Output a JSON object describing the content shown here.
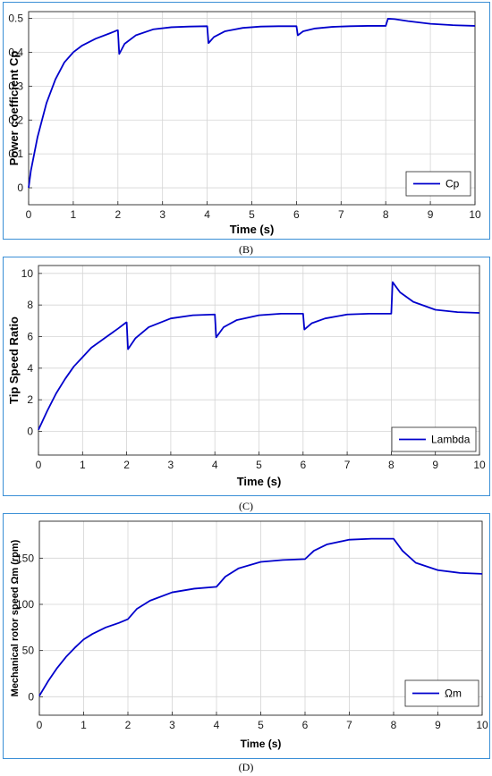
{
  "chart_data": [
    {
      "type": "line",
      "panel_label": "(B)",
      "xlabel": "Time (s)",
      "ylabel": "Power coefficient Cp",
      "xlim": [
        0,
        10
      ],
      "ylim": [
        -0.05,
        0.52
      ],
      "xticks": [
        0,
        1,
        2,
        3,
        4,
        5,
        6,
        7,
        8,
        9,
        10
      ],
      "yticks": [
        0,
        0.1,
        0.2,
        0.3,
        0.4,
        0.5
      ],
      "grid": true,
      "legend_position": "bottom-right",
      "line_color": "#0000cc",
      "series": [
        {
          "name": "Cp",
          "x": [
            0,
            0.05,
            0.2,
            0.4,
            0.6,
            0.8,
            1.0,
            1.2,
            1.5,
            1.8,
            1.99,
            2.0,
            2.03,
            2.15,
            2.4,
            2.8,
            3.2,
            3.6,
            3.99,
            4.0,
            4.03,
            4.15,
            4.4,
            4.8,
            5.2,
            5.6,
            5.99,
            6.0,
            6.03,
            6.15,
            6.4,
            6.8,
            7.2,
            7.6,
            7.99,
            8.0,
            8.05,
            8.2,
            8.5,
            9.0,
            9.5,
            10.0
          ],
          "y": [
            0.0,
            0.05,
            0.15,
            0.25,
            0.32,
            0.37,
            0.4,
            0.42,
            0.44,
            0.455,
            0.465,
            0.465,
            0.395,
            0.425,
            0.45,
            0.468,
            0.474,
            0.476,
            0.477,
            0.477,
            0.427,
            0.445,
            0.462,
            0.472,
            0.476,
            0.477,
            0.477,
            0.477,
            0.45,
            0.462,
            0.47,
            0.475,
            0.477,
            0.478,
            0.478,
            0.478,
            0.499,
            0.498,
            0.492,
            0.484,
            0.48,
            0.478
          ]
        }
      ]
    },
    {
      "type": "line",
      "panel_label": "(C)",
      "xlabel": "Time (s)",
      "ylabel": "Tip Speed Ratio",
      "xlim": [
        0,
        10
      ],
      "ylim": [
        -1.5,
        10.5
      ],
      "xticks": [
        0,
        1,
        2,
        3,
        4,
        5,
        6,
        7,
        8,
        9,
        10
      ],
      "yticks": [
        0,
        2,
        4,
        6,
        8,
        10
      ],
      "grid": true,
      "legend_position": "bottom-right",
      "line_color": "#0000cc",
      "series": [
        {
          "name": "Lambda",
          "x": [
            0,
            0.2,
            0.4,
            0.6,
            0.8,
            1.0,
            1.2,
            1.5,
            1.8,
            1.99,
            2.0,
            2.03,
            2.2,
            2.5,
            3.0,
            3.5,
            3.99,
            4.0,
            4.03,
            4.2,
            4.5,
            5.0,
            5.5,
            5.99,
            6.0,
            6.03,
            6.2,
            6.5,
            7.0,
            7.5,
            7.99,
            8.0,
            8.03,
            8.2,
            8.5,
            9.0,
            9.5,
            10.0
          ],
          "y": [
            0.1,
            1.3,
            2.4,
            3.3,
            4.1,
            4.7,
            5.3,
            5.9,
            6.5,
            6.9,
            6.9,
            5.2,
            5.9,
            6.6,
            7.15,
            7.35,
            7.4,
            7.4,
            5.95,
            6.6,
            7.05,
            7.35,
            7.45,
            7.45,
            7.45,
            6.45,
            6.85,
            7.15,
            7.4,
            7.45,
            7.45,
            7.45,
            9.45,
            8.8,
            8.2,
            7.7,
            7.55,
            7.5
          ]
        }
      ]
    },
    {
      "type": "line",
      "panel_label": "(D)",
      "xlabel": "Time (s)",
      "ylabel": "Mechanical rotor speed Ωm (rpm)",
      "xlim": [
        0,
        10
      ],
      "ylim": [
        -20,
        190
      ],
      "xticks": [
        0,
        1,
        2,
        3,
        4,
        5,
        6,
        7,
        8,
        9,
        10
      ],
      "yticks": [
        0,
        50,
        100,
        150
      ],
      "grid": true,
      "legend_position": "bottom-right",
      "line_color": "#0000cc",
      "series": [
        {
          "name": "Ωm",
          "x": [
            0,
            0.2,
            0.4,
            0.6,
            0.8,
            1.0,
            1.2,
            1.5,
            1.8,
            2.0,
            2.2,
            2.5,
            3.0,
            3.5,
            4.0,
            4.2,
            4.5,
            5.0,
            5.5,
            6.0,
            6.2,
            6.5,
            7.0,
            7.5,
            8.0,
            8.2,
            8.5,
            9.0,
            9.5,
            10.0
          ],
          "y": [
            1,
            17,
            31,
            43,
            53,
            62,
            68,
            75,
            80,
            84,
            95,
            104,
            113,
            117,
            119,
            130,
            139,
            146,
            148,
            149,
            158,
            165,
            170,
            171,
            171,
            158,
            145,
            137,
            134,
            133
          ]
        }
      ]
    }
  ]
}
